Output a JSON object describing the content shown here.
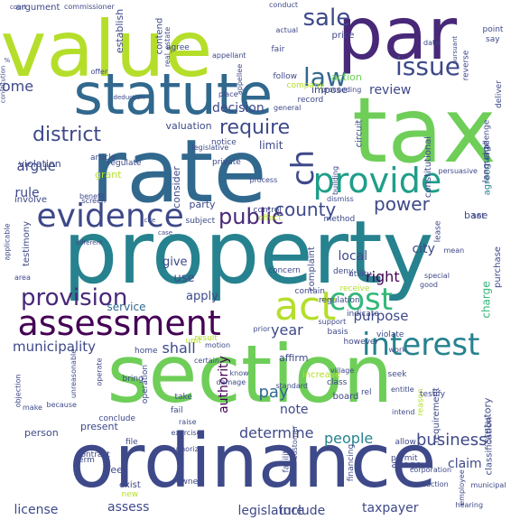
{
  "title": "",
  "palette": {
    "background": "#ffffff",
    "colors": [
      "#440154",
      "#482878",
      "#3e4989",
      "#31688e",
      "#26828e",
      "#1f9e89",
      "#35b779",
      "#6ece58",
      "#b5de2b",
      "#fde725"
    ]
  },
  "words": [
    {
      "text": "property",
      "color": "#26828e",
      "vertical": false
    },
    {
      "text": "section",
      "color": "#6ece58",
      "vertical": false
    },
    {
      "text": "ordinance",
      "color": "#3e4989",
      "vertical": false
    },
    {
      "text": "tax",
      "color": "#6ece58",
      "vertical": false
    },
    {
      "text": "rate",
      "color": "#31688e",
      "vertical": false
    },
    {
      "text": "value",
      "color": "#b5de2b",
      "vertical": false
    },
    {
      "text": "par",
      "color": "#482878",
      "vertical": false
    },
    {
      "text": "statute",
      "color": "#31688e",
      "vertical": false
    },
    {
      "text": "assessment",
      "color": "#440154",
      "vertical": false
    },
    {
      "text": "provide",
      "color": "#1f9e89",
      "vertical": false
    },
    {
      "text": "evidence",
      "color": "#3e4989",
      "vertical": false
    },
    {
      "text": "interest",
      "color": "#26828e",
      "vertical": false
    },
    {
      "text": "act",
      "color": "#b5de2b",
      "vertical": false
    },
    {
      "text": "cost",
      "color": "#35b779",
      "vertical": false
    },
    {
      "text": "issue",
      "color": "#3e4989",
      "vertical": false
    },
    {
      "text": "law",
      "color": "#31688e",
      "vertical": false
    },
    {
      "text": "sale",
      "color": "#3e4989",
      "vertical": false
    },
    {
      "text": "district",
      "color": "#3e4989",
      "vertical": false
    },
    {
      "text": "ch",
      "color": "#3e4989",
      "vertical": true
    },
    {
      "text": "provision",
      "color": "#482878",
      "vertical": false
    },
    {
      "text": "public",
      "color": "#482878",
      "vertical": false
    },
    {
      "text": "power",
      "color": "#3e4989",
      "vertical": false
    },
    {
      "text": "require",
      "color": "#3e4989",
      "vertical": false
    },
    {
      "text": "county",
      "color": "#3e4989",
      "vertical": false
    },
    {
      "text": "business",
      "color": "#3e4989",
      "vertical": false
    },
    {
      "text": "municipality",
      "color": "#3e4989",
      "vertical": false
    },
    {
      "text": "authority",
      "color": "#440154",
      "vertical": true
    },
    {
      "text": "decision",
      "color": "#3e4989",
      "vertical": false
    },
    {
      "text": "argue",
      "color": "#3e4989",
      "vertical": false
    },
    {
      "text": "rule",
      "color": "#3e4989",
      "vertical": false
    },
    {
      "text": "review",
      "color": "#3e4989",
      "vertical": false
    },
    {
      "text": "shall",
      "color": "#3e4989",
      "vertical": false
    },
    {
      "text": "year",
      "color": "#3e4989",
      "vertical": false
    },
    {
      "text": "right",
      "color": "#440154",
      "vertical": false
    },
    {
      "text": "purpose",
      "color": "#3e4989",
      "vertical": false
    },
    {
      "text": "local",
      "color": "#3e4989",
      "vertical": false
    },
    {
      "text": "city",
      "color": "#3e4989",
      "vertical": false
    },
    {
      "text": "pay",
      "color": "#31688e",
      "vertical": false
    },
    {
      "text": "note",
      "color": "#3e4989",
      "vertical": false
    },
    {
      "text": "determine",
      "color": "#3e4989",
      "vertical": false
    },
    {
      "text": "people",
      "color": "#26828e",
      "vertical": false
    },
    {
      "text": "legislature",
      "color": "#3e4989",
      "vertical": false
    },
    {
      "text": "include",
      "color": "#3e4989",
      "vertical": false
    },
    {
      "text": "taxpayer",
      "color": "#3e4989",
      "vertical": false
    },
    {
      "text": "license",
      "color": "#3e4989",
      "vertical": false
    },
    {
      "text": "assess",
      "color": "#3e4989",
      "vertical": false
    },
    {
      "text": "claim",
      "color": "#3e4989",
      "vertical": false
    },
    {
      "text": "apply",
      "color": "#3e4989",
      "vertical": false
    },
    {
      "text": "give",
      "color": "#3e4989",
      "vertical": false
    },
    {
      "text": "use",
      "color": "#3e4989",
      "vertical": false
    },
    {
      "text": "service",
      "color": "#31688e",
      "vertical": false
    },
    {
      "text": "party",
      "color": "#3e4989",
      "vertical": false
    },
    {
      "text": "valuation",
      "color": "#3e4989",
      "vertical": false
    },
    {
      "text": "limit",
      "color": "#3e4989",
      "vertical": false
    },
    {
      "text": "action",
      "color": "#6ece58",
      "vertical": false
    },
    {
      "text": "impose",
      "color": "#3e4989",
      "vertical": false
    },
    {
      "text": "price",
      "color": "#3e4989",
      "vertical": false
    },
    {
      "text": "base",
      "color": "#3e4989",
      "vertical": false
    },
    {
      "text": "consider",
      "color": "#3e4989",
      "vertical": true
    },
    {
      "text": "charge",
      "color": "#35b779",
      "vertical": true
    },
    {
      "text": "statutory",
      "color": "#3e4989",
      "vertical": true
    },
    {
      "text": "contend",
      "color": "#3e4989",
      "vertical": true
    },
    {
      "text": "establish",
      "color": "#3e4989",
      "vertical": true
    },
    {
      "text": "argument",
      "color": "#3e4989",
      "vertical": false
    },
    {
      "text": "circuit",
      "color": "#3e4989",
      "vertical": true
    },
    {
      "text": "agreement",
      "color": "#26828e",
      "vertical": true
    },
    {
      "text": "complaint",
      "color": "#3e4989",
      "vertical": true
    },
    {
      "text": "affirm",
      "color": "#3e4989",
      "vertical": false
    },
    {
      "text": "present",
      "color": "#3e4989",
      "vertical": false
    },
    {
      "text": "person",
      "color": "#3e4989",
      "vertical": false
    },
    {
      "text": "fee",
      "color": "#3e4989",
      "vertical": false
    },
    {
      "text": "exist",
      "color": "#3e4989",
      "vertical": false
    },
    {
      "text": "allege",
      "color": "#3e4989",
      "vertical": false
    },
    {
      "text": "grant",
      "color": "#b5de2b",
      "vertical": false
    },
    {
      "text": "violation",
      "color": "#3e4989",
      "vertical": false
    },
    {
      "text": "involve",
      "color": "#3e4989",
      "vertical": false
    },
    {
      "text": "record",
      "color": "#3e4989",
      "vertical": false
    },
    {
      "text": "follow",
      "color": "#3e4989",
      "vertical": false
    },
    {
      "text": "company",
      "color": "#b5de2b",
      "vertical": false
    },
    {
      "text": "fair",
      "color": "#3e4989",
      "vertical": false
    },
    {
      "text": "reverse",
      "color": "#3e4989",
      "vertical": true
    },
    {
      "text": "point",
      "color": "#3e4989",
      "vertical": false
    },
    {
      "text": "say",
      "color": "#3e4989",
      "vertical": false
    },
    {
      "text": "agree",
      "color": "#3e4989",
      "vertical": false
    },
    {
      "text": "deny",
      "color": "#3e4989",
      "vertical": false
    },
    {
      "text": "set",
      "color": "#3e4989",
      "vertical": false
    },
    {
      "text": "utility",
      "color": "#3e4989",
      "vertical": false
    },
    {
      "text": "receive",
      "color": "#b5de2b",
      "vertical": false
    },
    {
      "text": "regulation",
      "color": "#3e4989",
      "vertical": false
    },
    {
      "text": "unit",
      "color": "#b5de2b",
      "vertical": false
    },
    {
      "text": "method",
      "color": "#3e4989",
      "vertical": false
    },
    {
      "text": "control",
      "color": "#3e4989",
      "vertical": false
    },
    {
      "text": "effect",
      "color": "#b5de2b",
      "vertical": false
    },
    {
      "text": "subject",
      "color": "#3e4989",
      "vertical": false
    },
    {
      "text": "notice",
      "color": "#3e4989",
      "vertical": false
    },
    {
      "text": "testimony",
      "color": "#3e4989",
      "vertical": true
    },
    {
      "text": "constitutional",
      "color": "#3e4989",
      "vertical": true
    },
    {
      "text": "language",
      "color": "#3e4989",
      "vertical": true
    },
    {
      "text": "purchase",
      "color": "#3e4989",
      "vertical": true
    },
    {
      "text": "increase",
      "color": "#b5de2b",
      "vertical": false
    },
    {
      "text": "board",
      "color": "#3e4989",
      "vertical": false
    },
    {
      "text": "class",
      "color": "#3e4989",
      "vertical": false
    },
    {
      "text": "seek",
      "color": "#3e4989",
      "vertical": false
    },
    {
      "text": "rel",
      "color": "#3e4989",
      "vertical": false
    },
    {
      "text": "requirement",
      "color": "#3e4989",
      "vertical": true
    },
    {
      "text": "reason",
      "color": "#b5de2b",
      "vertical": true
    },
    {
      "text": "testify",
      "color": "#3e4989",
      "vertical": false
    },
    {
      "text": "classification",
      "color": "#3e4989",
      "vertical": true
    },
    {
      "text": "allow",
      "color": "#3e4989",
      "vertical": false
    },
    {
      "text": "permit",
      "color": "#3e4989",
      "vertical": false
    },
    {
      "text": "file",
      "color": "#3e4989",
      "vertical": false
    },
    {
      "text": "take",
      "color": "#3e4989",
      "vertical": false
    },
    {
      "text": "fail",
      "color": "#3e4989",
      "vertical": false
    },
    {
      "text": "operation",
      "color": "#3e4989",
      "vertical": true
    },
    {
      "text": "bring",
      "color": "#3e4989",
      "vertical": false
    },
    {
      "text": "conclude",
      "color": "#3e4989",
      "vertical": false
    },
    {
      "text": "home",
      "color": "#3e4989",
      "vertical": false
    },
    {
      "text": "result",
      "color": "#b5de2b",
      "vertical": false
    },
    {
      "text": "contain",
      "color": "#3e4989",
      "vertical": false
    },
    {
      "text": "concern",
      "color": "#3e4989",
      "vertical": false
    },
    {
      "text": "basis",
      "color": "#3e4989",
      "vertical": false
    },
    {
      "text": "however",
      "color": "#3e4989",
      "vertical": false
    },
    {
      "text": "indicate",
      "color": "#3e4989",
      "vertical": false
    },
    {
      "text": "violate",
      "color": "#3e4989",
      "vertical": false
    },
    {
      "text": "financing",
      "color": "#3e4989",
      "vertical": true
    },
    {
      "text": "facility",
      "color": "#3e4989",
      "vertical": true
    },
    {
      "text": "owner",
      "color": "#3e4989",
      "vertical": false
    },
    {
      "text": "new",
      "color": "#b5de2b",
      "vertical": false
    },
    {
      "text": "term",
      "color": "#3e4989",
      "vertical": false
    },
    {
      "text": "contract",
      "color": "#3e4989",
      "vertical": false
    },
    {
      "text": "building",
      "color": "#3e4989",
      "vertical": true
    },
    {
      "text": "lease",
      "color": "#3e4989",
      "vertical": true
    },
    {
      "text": "private",
      "color": "#3e4989",
      "vertical": false
    },
    {
      "text": "regulate",
      "color": "#3e4989",
      "vertical": false
    },
    {
      "text": "article",
      "color": "#3e4989",
      "vertical": false
    },
    {
      "text": "challenge",
      "color": "#3e4989",
      "vertical": true
    },
    {
      "text": "deliver",
      "color": "#3e4989",
      "vertical": true
    },
    {
      "text": "proceeding",
      "color": "#3e4989",
      "vertical": false
    },
    {
      "text": "general",
      "color": "#3e4989",
      "vertical": false
    },
    {
      "text": "persuasive",
      "color": "#3e4989",
      "vertical": false
    },
    {
      "text": "conduct",
      "color": "#3e4989",
      "vertical": false
    },
    {
      "text": "commissioner",
      "color": "#3e4989",
      "vertical": false
    },
    {
      "text": "appellee",
      "color": "#3e4989",
      "vertical": true
    },
    {
      "text": "offer",
      "color": "#3e4989",
      "vertical": false
    },
    {
      "text": "process",
      "color": "#3e4989",
      "vertical": false
    },
    {
      "text": "dismiss",
      "color": "#3e4989",
      "vertical": false
    },
    {
      "text": "standard",
      "color": "#3e4989",
      "vertical": false
    },
    {
      "text": "customer",
      "color": "#3e4989",
      "vertical": true
    },
    {
      "text": "exercise",
      "color": "#3e4989",
      "vertical": false
    },
    {
      "text": "authorize",
      "color": "#3e4989",
      "vertical": false
    },
    {
      "text": "raise",
      "color": "#3e4989",
      "vertical": false
    },
    {
      "text": "hearing",
      "color": "#3e4989",
      "vertical": false
    },
    {
      "text": "employee",
      "color": "#3e4989",
      "vertical": true
    },
    {
      "text": "corporation",
      "color": "#3e4989",
      "vertical": false
    },
    {
      "text": "transaction",
      "color": "#3e4989",
      "vertical": false
    },
    {
      "text": "municipal",
      "color": "#3e4989",
      "vertical": false
    },
    {
      "text": "work",
      "color": "#3e4989",
      "vertical": false
    },
    {
      "text": "entitle",
      "color": "#3e4989",
      "vertical": false
    },
    {
      "text": "intend",
      "color": "#3e4989",
      "vertical": false
    },
    {
      "text": "village",
      "color": "#3e4989",
      "vertical": false
    },
    {
      "text": "know",
      "color": "#3e4989",
      "vertical": false
    },
    {
      "text": "damage",
      "color": "#3e4989",
      "vertical": false
    },
    {
      "text": "objection",
      "color": "#3e4989",
      "vertical": true
    },
    {
      "text": "unreasonable",
      "color": "#3e4989",
      "vertical": true
    },
    {
      "text": "because",
      "color": "#3e4989",
      "vertical": false
    },
    {
      "text": "make",
      "color": "#3e4989",
      "vertical": false
    },
    {
      "text": "applicable",
      "color": "#3e4989",
      "vertical": true
    },
    {
      "text": "area",
      "color": "#3e4989",
      "vertical": false
    },
    {
      "text": "operate",
      "color": "#3e4989",
      "vertical": true
    },
    {
      "text": "screen",
      "color": "#3e4989",
      "vertical": false
    },
    {
      "text": "benefit",
      "color": "#3e4989",
      "vertical": false
    },
    {
      "text": "real_estate",
      "color": "#3e4989",
      "vertical": true
    },
    {
      "text": "actual",
      "color": "#3e4989",
      "vertical": false
    },
    {
      "text": "appellant",
      "color": "#3e4989",
      "vertical": false
    },
    {
      "text": "case",
      "color": "#3e4989",
      "vertical": false
    },
    {
      "text": "court",
      "color": "#3e4989",
      "vertical": false
    },
    {
      "text": "place",
      "color": "#3e4989",
      "vertical": false
    },
    {
      "text": "deduction",
      "color": "#3e4989",
      "vertical": false
    },
    {
      "text": "cite",
      "color": "#3e4989",
      "vertical": false
    },
    {
      "text": "legislative",
      "color": "#3e4989",
      "vertical": false
    },
    {
      "text": "motion",
      "color": "#3e4989",
      "vertical": false
    },
    {
      "text": "certain",
      "color": "#3e4989",
      "vertical": false
    },
    {
      "text": "prior",
      "color": "#3e4989",
      "vertical": false
    },
    {
      "text": "different",
      "color": "#3e4989",
      "vertical": false
    },
    {
      "text": "support",
      "color": "#3e4989",
      "vertical": false
    },
    {
      "text": "good",
      "color": "#3e4989",
      "vertical": false
    },
    {
      "text": "mean",
      "color": "#3e4989",
      "vertical": false
    },
    {
      "text": "special",
      "color": "#3e4989",
      "vertical": false
    },
    {
      "text": "date",
      "color": "#3e4989",
      "vertical": false
    },
    {
      "text": "income",
      "color": "#3e4989",
      "vertical": false
    },
    {
      "text": "pursuant",
      "color": "#3e4989",
      "vertical": true
    },
    {
      "text": "%",
      "color": "#3e4989",
      "vertical": false
    },
    {
      "text": "constitution",
      "color": "#3e4989",
      "vertical": true
    },
    {
      "text": "contrary",
      "color": "#3e4989",
      "vertical": false
    },
    {
      "text": "construction",
      "color": "#3e4989",
      "vertical": false
    }
  ]
}
